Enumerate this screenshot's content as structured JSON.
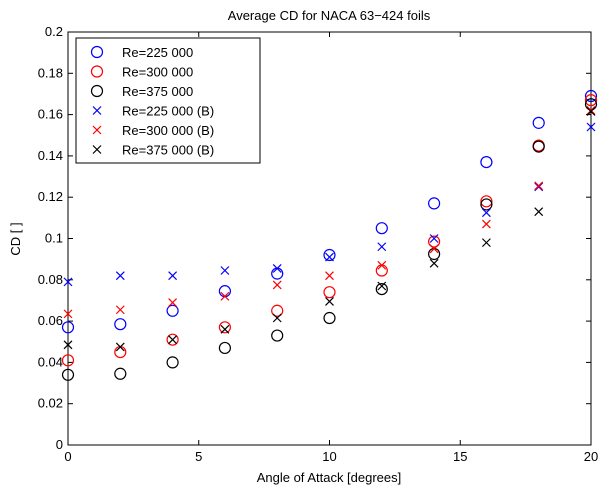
{
  "chart_data": {
    "type": "scatter",
    "title": "Average CD for NACA 63−424 foils",
    "xlabel": "Angle of Attack [degrees]",
    "ylabel": "CD [ ]",
    "xlim": [
      0,
      20
    ],
    "ylim": [
      0,
      0.2
    ],
    "xticks": [
      0,
      5,
      10,
      15,
      20
    ],
    "xtick_labels": [
      "0",
      "5",
      "10",
      "15",
      "20"
    ],
    "yticks": [
      0,
      0.02,
      0.04,
      0.06,
      0.08,
      0.1,
      0.12,
      0.14,
      0.16,
      0.18,
      0.2
    ],
    "ytick_labels": [
      "0",
      "0.02",
      "0.04",
      "0.06",
      "0.08",
      "0.1",
      "0.12",
      "0.14",
      "0.16",
      "0.18",
      "0.2"
    ],
    "grid": false,
    "legend_position": "top-left",
    "series": [
      {
        "name": "Re=225 000",
        "marker": "circle",
        "color": "#0000ff",
        "x": [
          0,
          2,
          4,
          6,
          8,
          10,
          12,
          14,
          16,
          18,
          20
        ],
        "y": [
          0.057,
          0.0585,
          0.065,
          0.0745,
          0.083,
          0.092,
          0.105,
          0.117,
          0.137,
          0.156,
          0.169
        ]
      },
      {
        "name": "Re=300 000",
        "marker": "circle",
        "color": "#ff0000",
        "x": [
          0,
          2,
          4,
          6,
          8,
          10,
          12,
          14,
          16,
          18,
          20
        ],
        "y": [
          0.041,
          0.045,
          0.051,
          0.057,
          0.065,
          0.074,
          0.0845,
          0.0985,
          0.118,
          0.145,
          0.167
        ]
      },
      {
        "name": "Re=375 000",
        "marker": "circle",
        "color": "#000000",
        "x": [
          0,
          2,
          4,
          6,
          8,
          10,
          12,
          14,
          16,
          18,
          20
        ],
        "y": [
          0.034,
          0.0345,
          0.04,
          0.047,
          0.053,
          0.0615,
          0.0755,
          0.0925,
          0.1165,
          0.1445,
          0.165
        ]
      },
      {
        "name": "Re=225 000 (B)",
        "marker": "x",
        "color": "#0000ff",
        "x": [
          0,
          2,
          4,
          6,
          8,
          10,
          12,
          14,
          16,
          18,
          20
        ],
        "y": [
          0.079,
          0.082,
          0.082,
          0.0845,
          0.0855,
          0.091,
          0.096,
          0.1,
          0.1125,
          0.125,
          0.154
        ]
      },
      {
        "name": "Re=300 000 (B)",
        "marker": "x",
        "color": "#ff0000",
        "x": [
          0,
          2,
          4,
          6,
          8,
          10,
          12,
          14,
          16,
          18,
          20
        ],
        "y": [
          0.0635,
          0.0655,
          0.069,
          0.072,
          0.0775,
          0.082,
          0.087,
          0.095,
          0.107,
          0.1255,
          0.162
        ]
      },
      {
        "name": "Re=375 000 (B)",
        "marker": "x",
        "color": "#000000",
        "x": [
          0,
          2,
          4,
          6,
          8,
          10,
          12,
          14,
          16,
          18,
          20
        ],
        "y": [
          0.0485,
          0.0475,
          0.051,
          0.056,
          0.0615,
          0.0695,
          0.077,
          0.088,
          0.098,
          0.113,
          0.1615
        ]
      }
    ]
  }
}
